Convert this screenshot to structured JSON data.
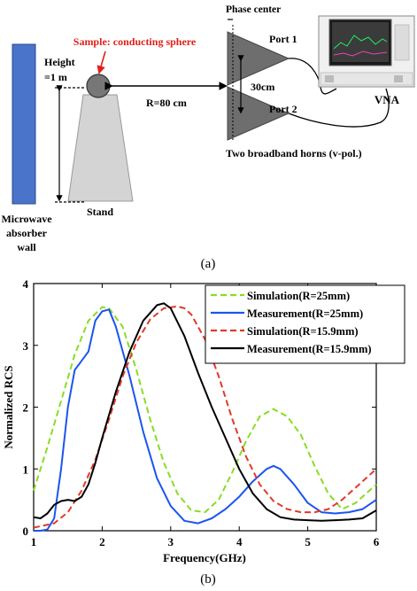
{
  "setup": {
    "sample_label": "Sample: conducting sphere",
    "phase_center_label": "Phase center",
    "height_label_line1": "Height",
    "height_label_line2": "=1 m",
    "distance_label": "R=80 cm",
    "port1_label": "Port 1",
    "port2_label": "Port 2",
    "spacing_label": "30cm",
    "vna_label": "VNA",
    "horns_label": "Two broadband horns (v-pol.)",
    "stand_label": "Stand",
    "absorber_label_line1": "Microwave",
    "absorber_label_line2": "absorber",
    "absorber_label_line3": "wall",
    "caption": "(a)"
  },
  "chart_caption": "(b)",
  "colors": {
    "absorber": "#4a74c9",
    "horn": "#707070",
    "sim25": "#88dd22",
    "meas25": "#1a55ee",
    "sim159": "#e03a2a",
    "meas159": "#000000"
  },
  "chart_data": {
    "type": "line",
    "xlabel": "Frequency(GHz)",
    "ylabel": "Normalized RCS",
    "xlim": [
      1,
      6
    ],
    "ylim": [
      0,
      4
    ],
    "xticks": [
      "1",
      "2",
      "3",
      "4",
      "5",
      "6"
    ],
    "yticks": [
      "0",
      "1",
      "2",
      "3",
      "4"
    ],
    "legend_position": "top-right",
    "series": [
      {
        "name": "Simulation(R=25mm)",
        "style": "dashed",
        "x": [
          1.0,
          1.2,
          1.4,
          1.6,
          1.8,
          2.0,
          2.1,
          2.3,
          2.5,
          2.7,
          2.9,
          3.1,
          3.3,
          3.5,
          3.7,
          3.9,
          4.1,
          4.3,
          4.5,
          4.7,
          4.9,
          5.1,
          5.3,
          5.5,
          5.7,
          6.0
        ],
        "y": [
          0.65,
          1.35,
          2.1,
          2.85,
          3.4,
          3.62,
          3.6,
          3.3,
          2.6,
          1.8,
          1.1,
          0.6,
          0.33,
          0.3,
          0.5,
          0.95,
          1.45,
          1.85,
          1.97,
          1.85,
          1.55,
          1.05,
          0.6,
          0.35,
          0.45,
          0.75
        ]
      },
      {
        "name": "Measurement(R=25mm)",
        "style": "solid",
        "x": [
          1.0,
          1.1,
          1.2,
          1.3,
          1.4,
          1.5,
          1.6,
          1.7,
          1.8,
          1.9,
          2.0,
          2.1,
          2.2,
          2.4,
          2.6,
          2.8,
          3.0,
          3.2,
          3.4,
          3.6,
          3.8,
          4.0,
          4.2,
          4.4,
          4.5,
          4.6,
          4.8,
          5.0,
          5.2,
          5.4,
          5.6,
          5.8,
          6.0
        ],
        "y": [
          0.0,
          0.0,
          0.02,
          0.2,
          1.0,
          2.0,
          2.6,
          2.75,
          2.9,
          3.4,
          3.55,
          3.58,
          3.3,
          2.5,
          1.6,
          0.85,
          0.4,
          0.16,
          0.12,
          0.2,
          0.35,
          0.55,
          0.8,
          1.0,
          1.05,
          1.0,
          0.75,
          0.45,
          0.3,
          0.28,
          0.3,
          0.35,
          0.5
        ]
      },
      {
        "name": "Simulation(R=15.9mm)",
        "style": "dashed",
        "x": [
          1.0,
          1.3,
          1.5,
          1.7,
          1.9,
          2.1,
          2.3,
          2.5,
          2.7,
          2.9,
          3.1,
          3.2,
          3.3,
          3.5,
          3.7,
          3.9,
          4.1,
          4.3,
          4.5,
          4.7,
          4.9,
          5.1,
          5.3,
          5.5,
          5.7,
          6.0
        ],
        "y": [
          0.05,
          0.12,
          0.3,
          0.65,
          1.15,
          1.8,
          2.5,
          3.05,
          3.42,
          3.6,
          3.63,
          3.6,
          3.5,
          3.1,
          2.5,
          1.8,
          1.2,
          0.75,
          0.48,
          0.35,
          0.3,
          0.3,
          0.35,
          0.5,
          0.7,
          1.0
        ]
      },
      {
        "name": "Measurement(R=15.9mm)",
        "style": "solid",
        "x": [
          1.0,
          1.1,
          1.2,
          1.3,
          1.4,
          1.5,
          1.6,
          1.7,
          1.8,
          1.9,
          2.0,
          2.2,
          2.4,
          2.6,
          2.8,
          2.9,
          3.0,
          3.2,
          3.4,
          3.6,
          3.8,
          4.0,
          4.2,
          4.4,
          4.6,
          4.8,
          5.0,
          5.2,
          5.4,
          5.6,
          5.8,
          6.0
        ],
        "y": [
          0.22,
          0.2,
          0.28,
          0.42,
          0.48,
          0.5,
          0.48,
          0.55,
          0.75,
          1.1,
          1.5,
          2.25,
          2.9,
          3.4,
          3.65,
          3.68,
          3.6,
          3.15,
          2.55,
          2.0,
          1.5,
          1.0,
          0.6,
          0.35,
          0.22,
          0.18,
          0.17,
          0.16,
          0.17,
          0.18,
          0.2,
          0.33
        ]
      }
    ]
  }
}
